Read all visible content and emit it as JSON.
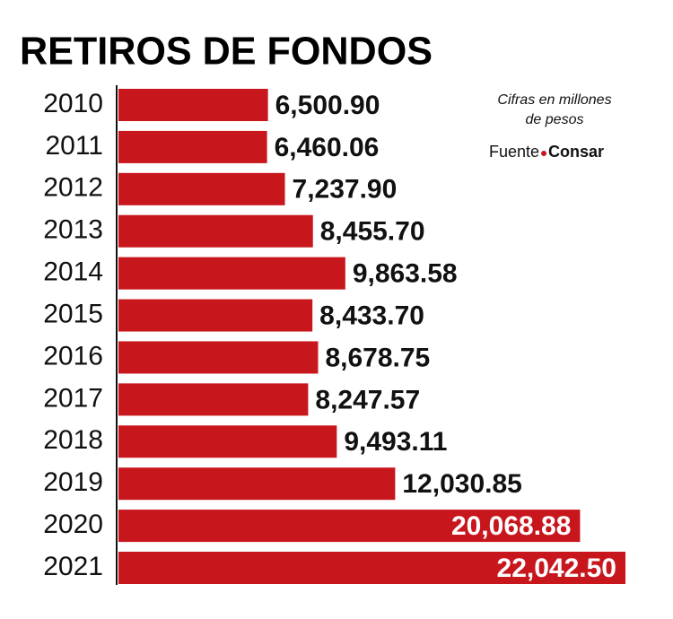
{
  "chart_data": {
    "type": "bar",
    "orientation": "horizontal",
    "title": "RETIROS DE FONDOS",
    "note_lines": [
      "Cifras en millones",
      "de pesos"
    ],
    "source_label": "Fuente",
    "source": "Consar",
    "categories": [
      "2010",
      "2011",
      "2012",
      "2013",
      "2014",
      "2015",
      "2016",
      "2017",
      "2018",
      "2019",
      "2020",
      "2021"
    ],
    "values": [
      6500.9,
      6460.06,
      7237.9,
      8455.7,
      9863.58,
      8433.7,
      8678.75,
      8247.57,
      9493.11,
      12030.85,
      20068.88,
      22042.5
    ],
    "value_labels": [
      "6,500.90",
      "6,460.06",
      "7,237.90",
      "8,455.70",
      "9,863.58",
      "8,433.70",
      "8,678.75",
      "8,247.57",
      "9,493.11",
      "12,030.85",
      "20,068.88",
      "22,042.50"
    ],
    "color": "#c8161d"
  }
}
